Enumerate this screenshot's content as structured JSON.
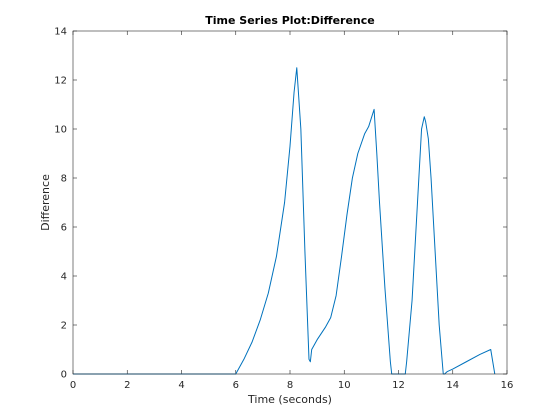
{
  "chart_data": {
    "type": "line",
    "title": "Time Series Plot:Difference",
    "xlabel": "Time (seconds)",
    "ylabel": "Difference",
    "xlim": [
      0,
      16
    ],
    "ylim": [
      0,
      14
    ],
    "xticks": [
      0,
      2,
      4,
      6,
      8,
      10,
      12,
      14,
      16
    ],
    "yticks": [
      0,
      2,
      4,
      6,
      8,
      10,
      12,
      14
    ],
    "grid": false,
    "box": true,
    "line_color": "#0072bd",
    "series": [
      {
        "x": [
          0,
          6.0,
          6.3,
          6.6,
          6.9,
          7.2,
          7.5,
          7.8,
          8.0,
          8.15,
          8.25,
          8.4,
          8.55,
          8.7,
          8.75,
          8.8,
          9.0,
          9.3,
          9.5,
          9.7,
          9.9,
          10.1,
          10.3,
          10.5,
          10.75,
          10.9,
          11.1,
          11.2,
          11.3,
          11.5,
          11.7,
          11.75,
          12.25,
          12.3,
          12.5,
          12.7,
          12.85,
          12.95,
          13.0,
          13.1,
          13.2,
          13.35,
          13.5,
          13.65,
          13.7,
          13.8,
          14.0,
          14.5,
          15.0,
          15.4,
          15.55
        ],
        "y": [
          0,
          0,
          0.6,
          1.3,
          2.2,
          3.3,
          4.8,
          7.0,
          9.3,
          11.5,
          12.5,
          10.0,
          5.0,
          0.6,
          0.5,
          1.0,
          1.4,
          1.9,
          2.3,
          3.2,
          4.8,
          6.5,
          8.0,
          9.0,
          9.8,
          10.1,
          10.8,
          9.0,
          7.0,
          3.5,
          0.5,
          0,
          0,
          0.5,
          3.0,
          7.0,
          10.0,
          10.5,
          10.3,
          9.6,
          8.0,
          5.0,
          2.0,
          0,
          0,
          0.1,
          0.2,
          0.5,
          0.8,
          1.0,
          0
        ]
      }
    ]
  }
}
